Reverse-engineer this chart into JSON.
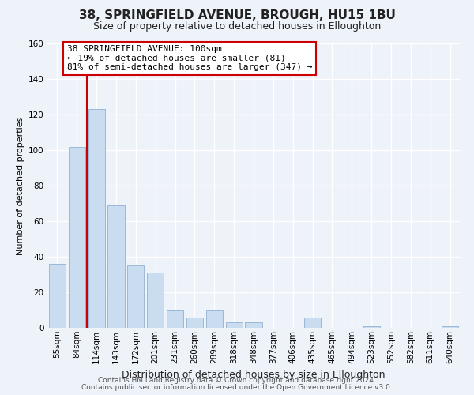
{
  "title": "38, SPRINGFIELD AVENUE, BROUGH, HU15 1BU",
  "subtitle": "Size of property relative to detached houses in Elloughton",
  "xlabel": "Distribution of detached houses by size in Elloughton",
  "ylabel": "Number of detached properties",
  "bar_labels": [
    "55sqm",
    "84sqm",
    "114sqm",
    "143sqm",
    "172sqm",
    "201sqm",
    "231sqm",
    "260sqm",
    "289sqm",
    "318sqm",
    "348sqm",
    "377sqm",
    "406sqm",
    "435sqm",
    "465sqm",
    "494sqm",
    "523sqm",
    "552sqm",
    "582sqm",
    "611sqm",
    "640sqm"
  ],
  "bar_values": [
    36,
    102,
    123,
    69,
    35,
    31,
    10,
    6,
    10,
    3,
    3,
    0,
    0,
    6,
    0,
    0,
    1,
    0,
    0,
    0,
    1
  ],
  "bar_color": "#c9dcf0",
  "bar_edge_color": "#9ab8d8",
  "vline_color": "#cc0000",
  "ylim": [
    0,
    160
  ],
  "yticks": [
    0,
    20,
    40,
    60,
    80,
    100,
    120,
    140,
    160
  ],
  "annotation_text": "38 SPRINGFIELD AVENUE: 100sqm\n← 19% of detached houses are smaller (81)\n81% of semi-detached houses are larger (347) →",
  "annotation_box_color": "#ffffff",
  "annotation_box_edge": "#cc0000",
  "footer_line1": "Contains HM Land Registry data © Crown copyright and database right 2024.",
  "footer_line2": "Contains public sector information licensed under the Open Government Licence v3.0.",
  "background_color": "#eef2f9",
  "grid_color": "#ffffff",
  "title_fontsize": 11,
  "subtitle_fontsize": 9,
  "ylabel_fontsize": 8,
  "xlabel_fontsize": 9,
  "tick_fontsize": 7.5,
  "ann_fontsize": 8,
  "footer_fontsize": 6.5
}
